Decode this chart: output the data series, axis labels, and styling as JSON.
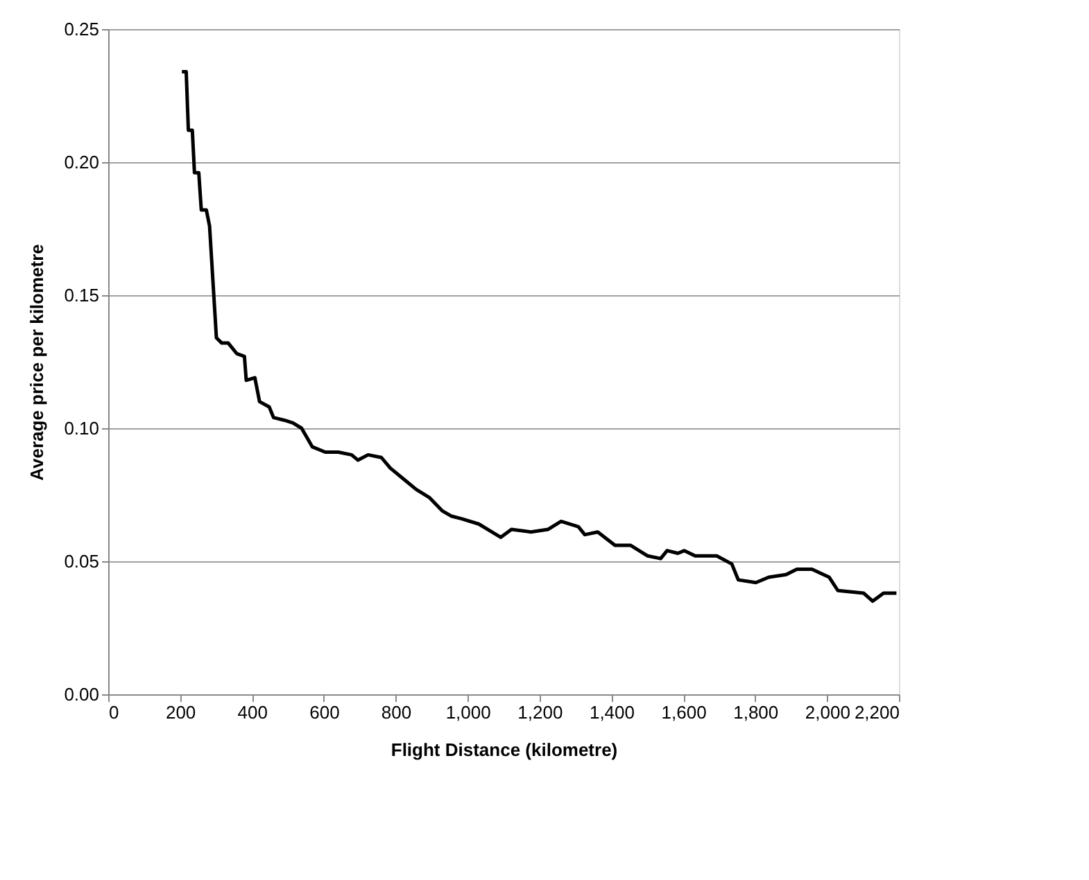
{
  "chart_data": {
    "type": "line",
    "xlabel": "Flight Distance (kilometre)",
    "ylabel": "Average price per kilometre",
    "xlim": [
      0,
      2200
    ],
    "xticks": [
      0,
      200,
      400,
      600,
      800,
      {
        "value": 1000,
        "label": "1,000"
      },
      {
        "value": 1200,
        "label": "1,200"
      },
      {
        "value": 1400,
        "label": "1,400"
      },
      {
        "value": 1600,
        "label": "1,600"
      },
      {
        "value": 1800,
        "label": "1,800"
      },
      {
        "value": 2000,
        "label": "2,000"
      },
      {
        "value": 2200,
        "label": "2,200"
      }
    ],
    "ylim": [
      0,
      0.25
    ],
    "yticks": [
      {
        "value": 0,
        "label": "0.00"
      },
      {
        "value": 0.05,
        "label": "0.05"
      },
      {
        "value": 0.1,
        "label": "0.10"
      },
      {
        "value": 0.15,
        "label": "0.15"
      },
      {
        "value": 0.2,
        "label": "0.20"
      },
      {
        "value": 0.25,
        "label": "0.25"
      }
    ],
    "grid": "y",
    "marker": "none",
    "line_style": "solid",
    "series": [
      {
        "color": "#000000",
        "x": [
          205,
          217,
          223,
          234,
          240,
          252,
          259,
          273,
          282,
          301,
          316,
          334,
          358,
          379,
          384,
          408,
          421,
          448,
          460,
          490,
          514,
          538,
          568,
          604,
          640,
          677,
          695,
          723,
          760,
          785,
          821,
          857,
          893,
          929,
          954,
          983,
          1031,
          1092,
          1122,
          1176,
          1224,
          1260,
          1308,
          1326,
          1362,
          1410,
          1453,
          1501,
          1537,
          1555,
          1585,
          1603,
          1633,
          1693,
          1735,
          1753,
          1802,
          1838,
          1886,
          1916,
          1958,
          2006,
          2030,
          2102,
          2127,
          2157,
          2193
        ],
        "values": [
          0.234,
          0.234,
          0.212,
          0.212,
          0.196,
          0.196,
          0.182,
          0.182,
          0.176,
          0.134,
          0.132,
          0.132,
          0.128,
          0.127,
          0.118,
          0.119,
          0.11,
          0.108,
          0.104,
          0.103,
          0.102,
          0.1,
          0.093,
          0.091,
          0.091,
          0.09,
          0.088,
          0.09,
          0.089,
          0.085,
          0.081,
          0.077,
          0.074,
          0.069,
          0.067,
          0.066,
          0.064,
          0.059,
          0.062,
          0.061,
          0.062,
          0.065,
          0.063,
          0.06,
          0.061,
          0.056,
          0.056,
          0.052,
          0.051,
          0.054,
          0.053,
          0.054,
          0.052,
          0.052,
          0.049,
          0.043,
          0.042,
          0.044,
          0.045,
          0.047,
          0.047,
          0.044,
          0.039,
          0.038,
          0.035,
          0.038,
          0.038
        ]
      }
    ]
  }
}
